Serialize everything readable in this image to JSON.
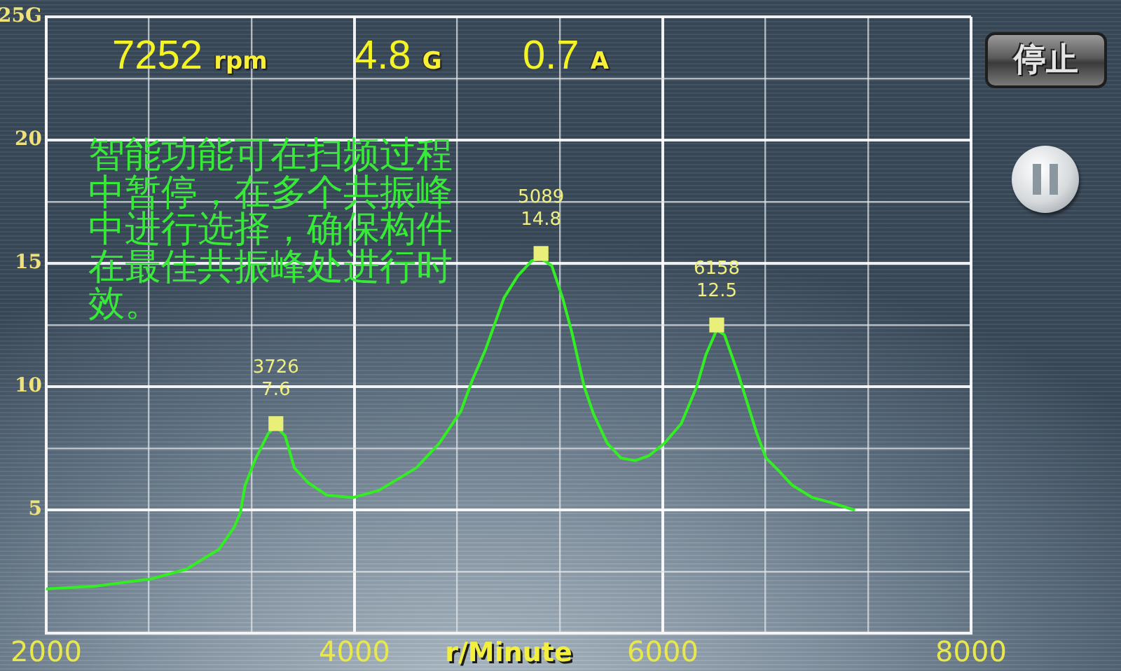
{
  "chart_data": {
    "type": "line",
    "xlabel": "r/Minute",
    "xlim": [
      2000,
      8000
    ],
    "xticks": [
      2000,
      {
        "value": 2666.67,
        "label": null
      },
      {
        "value": 3333.33,
        "label": null
      },
      4000,
      {
        "value": 4666.67,
        "label": null
      },
      {
        "value": 5333.33,
        "label": null
      },
      6000,
      {
        "value": 6666.67,
        "label": null
      },
      {
        "value": 7333.33,
        "label": null
      },
      8000
    ],
    "ylim": [
      0,
      25
    ],
    "yticks": [
      {
        "value": 2.5,
        "label": null
      },
      5,
      {
        "value": 7.5,
        "label": null
      },
      10,
      {
        "value": 12.5,
        "label": null
      },
      15,
      {
        "value": 17.5,
        "label": null
      },
      20,
      {
        "value": 22.5,
        "label": null
      },
      {
        "value": 25,
        "label": "25G"
      }
    ],
    "grid": true,
    "legend": false,
    "series": [
      {
        "type": "line",
        "color": "#33ee22",
        "marker": "none",
        "x": [
          2000,
          2310,
          2680,
          2910,
          3120,
          3220,
          3260,
          3290,
          3360,
          3440,
          3490,
          3550,
          3610,
          3700,
          3820,
          3990,
          4160,
          4400,
          4550,
          4690,
          4760,
          4850,
          4970,
          5060,
          5150,
          5210,
          5280,
          5350,
          5410,
          5490,
          5550,
          5640,
          5730,
          5820,
          5910,
          6010,
          6120,
          6220,
          6280,
          6350,
          6400,
          6490,
          6610,
          6670,
          6750,
          6840,
          6970,
          7090,
          7240
        ],
        "values": [
          1.8,
          1.9,
          2.2,
          2.6,
          3.4,
          4.3,
          4.9,
          6.0,
          7.1,
          8.1,
          8.4,
          8.0,
          6.7,
          6.1,
          5.6,
          5.5,
          5.8,
          6.7,
          7.7,
          9.0,
          10.2,
          11.5,
          13.6,
          14.5,
          15.1,
          15.2,
          14.9,
          13.6,
          12.2,
          10.0,
          8.9,
          7.7,
          7.1,
          7.0,
          7.2,
          7.7,
          8.5,
          10.0,
          11.3,
          12.3,
          12.1,
          10.5,
          8.1,
          7.1,
          6.6,
          6.0,
          5.5,
          5.3,
          5.0
        ]
      },
      {
        "type": "scatter",
        "color": "#e8f07a",
        "marker": "square",
        "x": [
          3490,
          5210,
          6350
        ],
        "values": [
          8.5,
          15.4,
          12.5
        ]
      }
    ],
    "annotations": [
      "7252 rpm",
      "4.8 G",
      "0.7 A",
      "智能功能可在扫频过程中暂停，在多个共振峰中进行选择，确保构件在最佳共振峰处进行时效。",
      "停止",
      {
        "text": "3726\n7.6",
        "x": 3490,
        "y": 8.5
      },
      {
        "text": "5089\n14.8",
        "x": 5210,
        "y": 15.4
      },
      {
        "text": "6158\n12.5",
        "x": 6350,
        "y": 12.5
      }
    ]
  }
}
